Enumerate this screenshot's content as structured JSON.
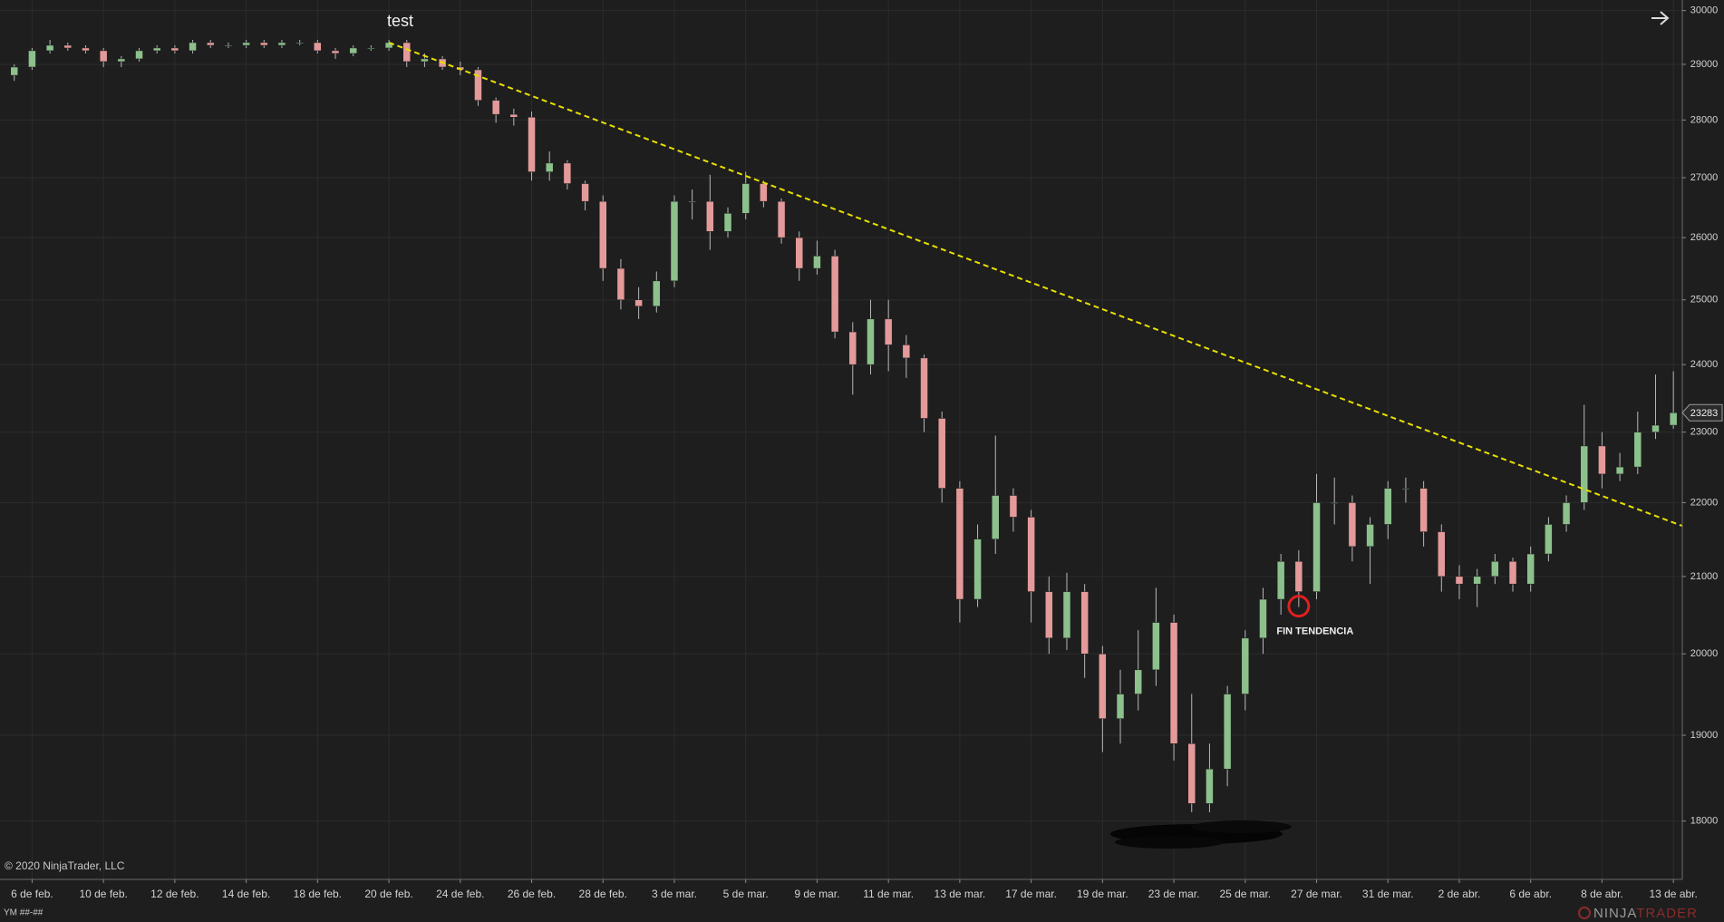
{
  "chart_data": {
    "type": "candlestick",
    "title": "test",
    "log": true,
    "grid": true,
    "up_color": "#8cc08c",
    "down_color": "#e49a9a",
    "wick_color": "#b8b8b8",
    "ylim": [
      17350,
      30200
    ],
    "yticks": [
      18000,
      19000,
      20000,
      21000,
      22000,
      23000,
      24000,
      25000,
      26000,
      27000,
      28000,
      29000,
      30000
    ],
    "xlim": [
      -0.9,
      46.25
    ],
    "xticks": [
      {
        "value": 0,
        "label": "6 de feb."
      },
      {
        "value": 2,
        "label": "10 de feb."
      },
      {
        "value": 4,
        "label": "12 de feb."
      },
      {
        "value": 6,
        "label": "14 de feb."
      },
      {
        "value": 8,
        "label": "18 de feb."
      },
      {
        "value": 10,
        "label": "20 de feb."
      },
      {
        "value": 12,
        "label": "24 de feb."
      },
      {
        "value": 14,
        "label": "26 de feb."
      },
      {
        "value": 16,
        "label": "28 de feb."
      },
      {
        "value": 18,
        "label": "3 de mar."
      },
      {
        "value": 20,
        "label": "5 de mar."
      },
      {
        "value": 22,
        "label": "9 de mar."
      },
      {
        "value": 24,
        "label": "11 de mar."
      },
      {
        "value": 26,
        "label": "13 de mar."
      },
      {
        "value": 28,
        "label": "17 de mar."
      },
      {
        "value": 30,
        "label": "19 de mar."
      },
      {
        "value": 32,
        "label": "23 de mar."
      },
      {
        "value": 34,
        "label": "25 de mar."
      },
      {
        "value": 36,
        "label": "27 de mar."
      },
      {
        "value": 38,
        "label": "31 de mar."
      },
      {
        "value": 40,
        "label": "2 de abr."
      },
      {
        "value": 42,
        "label": "6 de abr."
      },
      {
        "value": 44,
        "label": "8 de abr."
      },
      {
        "value": 46,
        "label": "13 de abr."
      }
    ],
    "x": [
      -0.5,
      0,
      0.5,
      1,
      1.5,
      2,
      2.5,
      3,
      3.5,
      4,
      4.5,
      5,
      5.5,
      6,
      6.5,
      7,
      7.5,
      8,
      8.5,
      9,
      9.5,
      10,
      10.5,
      11,
      11.5,
      12,
      12.5,
      13,
      13.5,
      14,
      14.5,
      15,
      15.5,
      16,
      16.5,
      17,
      17.5,
      18,
      18.5,
      19,
      19.5,
      20,
      20.5,
      21,
      21.5,
      22,
      22.5,
      23,
      23.5,
      24,
      24.5,
      25,
      25.5,
      26,
      26.5,
      27,
      27.5,
      28,
      28.5,
      29,
      29.5,
      30,
      30.5,
      31,
      31.5,
      32,
      32.5,
      33,
      33.5,
      34,
      34.5,
      35,
      35.5,
      36,
      36.5,
      37,
      37.5,
      38,
      38.5,
      39,
      39.5,
      40,
      40.5,
      41,
      41.5,
      42,
      42.5,
      43,
      43.5,
      44,
      44.5,
      45,
      45.5,
      46
    ],
    "open": [
      28800,
      28950,
      29250,
      29350,
      29300,
      29250,
      29050,
      29100,
      29250,
      29300,
      29250,
      29400,
      29350,
      29350,
      29400,
      29350,
      29400,
      29400,
      29250,
      29200,
      29300,
      29300,
      29400,
      29050,
      29100,
      28950,
      28900,
      28350,
      28100,
      28050,
      27100,
      27250,
      26900,
      26600,
      25500,
      25000,
      24900,
      25300,
      26600,
      26600,
      26100,
      26400,
      26900,
      26600,
      26000,
      25500,
      25700,
      24500,
      24000,
      24700,
      24300,
      24100,
      23200,
      22200,
      20700,
      21500,
      22100,
      21800,
      20800,
      20200,
      20800,
      20000,
      19200,
      19500,
      19800,
      20400,
      18900,
      18200,
      18600,
      19500,
      20200,
      20700,
      21200,
      20800,
      22000,
      22000,
      21400,
      21700,
      22200,
      22200,
      21600,
      21000,
      20900,
      21000,
      21200,
      20900,
      21300,
      21700,
      22000,
      22800,
      22400,
      22500,
      23000,
      23100
    ],
    "high": [
      29000,
      29300,
      29450,
      29400,
      29350,
      29300,
      29150,
      29300,
      29350,
      29350,
      29450,
      29450,
      29400,
      29450,
      29450,
      29450,
      29450,
      29450,
      29300,
      29350,
      29350,
      29450,
      29450,
      29200,
      29150,
      29050,
      28950,
      28400,
      28200,
      28150,
      27450,
      27300,
      26950,
      26700,
      25650,
      25200,
      25450,
      26700,
      26800,
      27050,
      26500,
      27100,
      26950,
      26650,
      26100,
      25950,
      25800,
      24650,
      25000,
      25000,
      24450,
      24150,
      23300,
      22300,
      21700,
      22950,
      22200,
      21900,
      21000,
      21050,
      20900,
      20100,
      19800,
      20300,
      20850,
      20500,
      19500,
      18900,
      19600,
      20300,
      20850,
      21300,
      21350,
      22400,
      22350,
      22100,
      21800,
      22300,
      22350,
      22300,
      21700,
      21150,
      21100,
      21300,
      21250,
      21400,
      21800,
      22100,
      23400,
      23000,
      22700,
      23300,
      23850,
      23900
    ],
    "low": [
      28700,
      28900,
      29200,
      29250,
      29200,
      28950,
      28950,
      29050,
      29200,
      29200,
      29200,
      29300,
      29300,
      29300,
      29300,
      29300,
      29350,
      29200,
      29100,
      29150,
      29250,
      29250,
      28950,
      28950,
      28900,
      28800,
      28250,
      27950,
      27900,
      26950,
      26950,
      26800,
      26450,
      25300,
      24850,
      24700,
      24800,
      25200,
      26300,
      25800,
      26000,
      26300,
      26500,
      25900,
      25300,
      25400,
      24400,
      23550,
      23850,
      23900,
      23800,
      23000,
      22000,
      20400,
      20600,
      21300,
      21600,
      20400,
      20000,
      20050,
      19700,
      18800,
      18900,
      19300,
      19600,
      18700,
      18100,
      18100,
      18400,
      19300,
      20000,
      20500,
      20600,
      20700,
      21700,
      21200,
      20900,
      21500,
      22000,
      21400,
      20800,
      20700,
      20600,
      20900,
      20800,
      20800,
      21200,
      21600,
      21900,
      22200,
      22300,
      22400,
      22900,
      23050
    ],
    "close": [
      28950,
      29250,
      29350,
      29300,
      29250,
      29050,
      29100,
      29250,
      29300,
      29250,
      29400,
      29350,
      29350,
      29400,
      29350,
      29400,
      29400,
      29250,
      29200,
      29300,
      29300,
      29400,
      29050,
      29100,
      28950,
      28900,
      28350,
      28100,
      28050,
      27100,
      27250,
      26900,
      26600,
      25500,
      25000,
      24900,
      25300,
      26600,
      26600,
      26100,
      26400,
      26900,
      26600,
      26000,
      25500,
      25700,
      24500,
      24000,
      24700,
      24300,
      24100,
      23200,
      22200,
      20700,
      21500,
      22100,
      21800,
      20800,
      20200,
      20800,
      20000,
      19200,
      19500,
      19800,
      20400,
      18900,
      18200,
      18600,
      19500,
      20200,
      20700,
      21200,
      20800,
      22000,
      22000,
      21400,
      21700,
      22200,
      22200,
      21600,
      21000,
      20900,
      21000,
      21200,
      20900,
      21300,
      21700,
      22000,
      22800,
      22400,
      22500,
      23000,
      23100,
      23283
    ],
    "trendline": {
      "x": [
        10,
        46.25
      ],
      "values": [
        29400,
        21680
      ],
      "color": "#e8e000"
    },
    "marker": {
      "x": 35.5,
      "value": 20610,
      "label": "FIN TENDENCIA",
      "color": "#e02020"
    },
    "copyright": "© 2020 NinjaTrader, LLC",
    "instrument": "YM ##-##",
    "brand": [
      "NINJA",
      "TRADER"
    ]
  }
}
